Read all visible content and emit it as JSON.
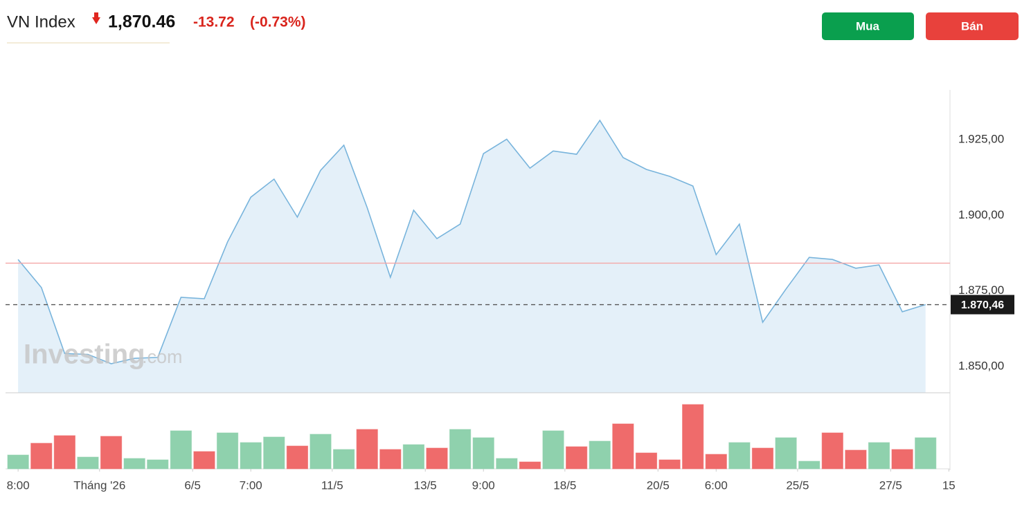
{
  "header": {
    "title": "VN Index",
    "price": "1,870.46",
    "change": "-13.72",
    "change_pct": "(-0.73%)"
  },
  "buttons": {
    "buy": "Mua",
    "sell": "Bán"
  },
  "watermark": {
    "brand": "Investing",
    "suffix": ".com"
  },
  "chart_data": {
    "type": "line",
    "x": [
      0,
      1,
      2,
      3,
      4,
      5,
      6,
      7,
      8,
      9,
      10,
      11,
      12,
      13,
      14,
      15,
      16,
      17,
      18,
      19,
      20,
      21,
      22,
      23,
      24,
      25,
      26,
      27,
      28,
      29,
      30,
      31,
      32,
      33,
      34,
      35,
      36,
      37,
      38,
      39
    ],
    "xlim": [
      -0.54,
      40.05
    ],
    "xticks": [
      {
        "value": 0,
        "label": "8:00"
      },
      {
        "value": 3.5,
        "label": "Tháng '26"
      },
      {
        "value": 7.5,
        "label": "6/5"
      },
      {
        "value": 10,
        "label": "7:00"
      },
      {
        "value": 13.5,
        "label": "11/5"
      },
      {
        "value": 17.5,
        "label": "13/5"
      },
      {
        "value": 20,
        "label": "9:00"
      },
      {
        "value": 23.5,
        "label": "18/5"
      },
      {
        "value": 27.5,
        "label": "20/5"
      },
      {
        "value": 30,
        "label": "6:00"
      },
      {
        "value": 33.5,
        "label": "25/5"
      },
      {
        "value": 37.5,
        "label": "27/5"
      },
      {
        "value": 40,
        "label": "15"
      }
    ],
    "ylim": [
      1841.3,
      1941.5
    ],
    "yticks": [
      {
        "value": 1850,
        "label": "1.850,00"
      },
      {
        "value": 1875,
        "label": "1.875,00"
      },
      {
        "value": 1900,
        "label": "1.900,00"
      },
      {
        "value": 1925,
        "label": "1.925,00"
      }
    ],
    "series": [
      {
        "color": "#78b4dc",
        "fill": "#e4f0f9",
        "values": [
          1885.4,
          1876.1,
          1854.3,
          1854.0,
          1850.9,
          1852.7,
          1853.0,
          1872.9,
          1872.4,
          1891.2,
          1906.0,
          1912.0,
          1899.4,
          1914.9,
          1923.2,
          1902.6,
          1879.5,
          1901.7,
          1892.3,
          1897.1,
          1920.4,
          1925.2,
          1915.6,
          1921.3,
          1920.2,
          1931.4,
          1919.1,
          1915.2,
          1912.9,
          1909.7,
          1887.0,
          1897.1,
          1864.6,
          1875.6,
          1886.1,
          1885.4,
          1882.5,
          1883.6,
          1868.1,
          1870.46
        ]
      }
    ],
    "reference_lines": [
      {
        "value": 1884.18,
        "color": "#f4a6a6"
      },
      {
        "value": 1870.46,
        "label": "1.870,46",
        "color": "#555555",
        "dashed": true
      }
    ],
    "volume": {
      "type": "bar",
      "ylim": [
        0,
        105
      ],
      "values": [
        20,
        37,
        48,
        17,
        47,
        15,
        13,
        55,
        25,
        52,
        38,
        46,
        33,
        50,
        28,
        57,
        28,
        35,
        30,
        57,
        45,
        15,
        10,
        55,
        32,
        40,
        65,
        23,
        13,
        93,
        21,
        38,
        30,
        45,
        11,
        52,
        27,
        38,
        28,
        45
      ],
      "colors": [
        "#8fd1ad",
        "#ef6b6b",
        "#ef6b6b",
        "#8fd1ad",
        "#ef6b6b",
        "#8fd1ad",
        "#8fd1ad",
        "#8fd1ad",
        "#ef6b6b",
        "#8fd1ad",
        "#8fd1ad",
        "#8fd1ad",
        "#ef6b6b",
        "#8fd1ad",
        "#8fd1ad",
        "#ef6b6b",
        "#ef6b6b",
        "#8fd1ad",
        "#ef6b6b",
        "#8fd1ad",
        "#8fd1ad",
        "#8fd1ad",
        "#ef6b6b",
        "#8fd1ad",
        "#ef6b6b",
        "#8fd1ad",
        "#ef6b6b",
        "#ef6b6b",
        "#ef6b6b",
        "#ef6b6b",
        "#ef6b6b",
        "#8fd1ad",
        "#ef6b6b",
        "#8fd1ad",
        "#8fd1ad",
        "#ef6b6b",
        "#ef6b6b",
        "#8fd1ad",
        "#ef6b6b",
        "#8fd1ad"
      ]
    }
  }
}
